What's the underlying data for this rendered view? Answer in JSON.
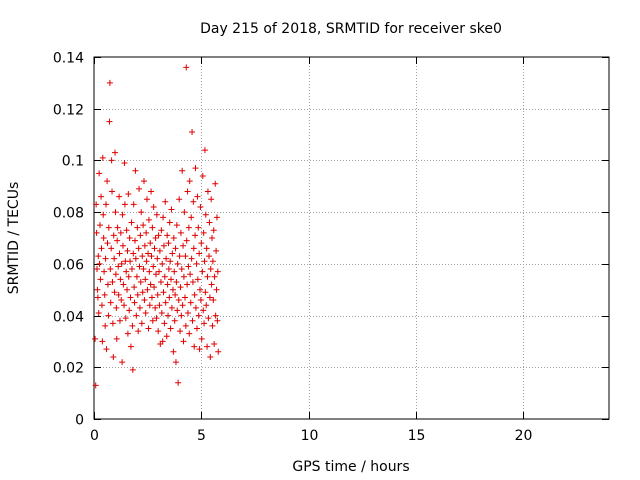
{
  "chart_data": {
    "type": "scatter",
    "title": "Day 215 of 2018, SRMTID for receiver ske0",
    "xlabel": "GPS time / hours",
    "ylabel": "SRMTID / TECUs",
    "xlim": [
      0,
      24
    ],
    "ylim": [
      0,
      0.14
    ],
    "xticks": [
      0,
      5,
      10,
      15,
      20
    ],
    "xtick_labels": [
      "0",
      "5",
      "10",
      "15",
      "20"
    ],
    "yticks": [
      0,
      0.02,
      0.04,
      0.06,
      0.08,
      0.1,
      0.12,
      0.14
    ],
    "ytick_labels": [
      "0",
      "0.02",
      "0.04",
      "0.06",
      "0.08",
      "0.1",
      "0.12",
      "0.14"
    ],
    "grid": true,
    "marker": "+",
    "series": [
      {
        "name": "SRMTID",
        "color": "#e00000",
        "points": [
          [
            0.05,
            0.031
          ],
          [
            0.08,
            0.013
          ],
          [
            0.1,
            0.083
          ],
          [
            0.12,
            0.072
          ],
          [
            0.14,
            0.058
          ],
          [
            0.16,
            0.05
          ],
          [
            0.18,
            0.047
          ],
          [
            0.2,
            0.063
          ],
          [
            0.22,
            0.041
          ],
          [
            0.24,
            0.095
          ],
          [
            0.26,
            0.06
          ],
          [
            0.28,
            0.075
          ],
          [
            0.3,
            0.054
          ],
          [
            0.33,
            0.086
          ],
          [
            0.35,
            0.066
          ],
          [
            0.37,
            0.044
          ],
          [
            0.39,
            0.03
          ],
          [
            0.41,
            0.101
          ],
          [
            0.43,
            0.079
          ],
          [
            0.45,
            0.07
          ],
          [
            0.47,
            0.057
          ],
          [
            0.5,
            0.048
          ],
          [
            0.52,
            0.036
          ],
          [
            0.54,
            0.062
          ],
          [
            0.56,
            0.083
          ],
          [
            0.58,
            0.027
          ],
          [
            0.61,
            0.092
          ],
          [
            0.63,
            0.068
          ],
          [
            0.65,
            0.052
          ],
          [
            0.67,
            0.04
          ],
          [
            0.69,
            0.074
          ],
          [
            0.72,
            0.115
          ],
          [
            0.74,
            0.13
          ],
          [
            0.76,
            0.058
          ],
          [
            0.78,
            0.045
          ],
          [
            0.8,
            0.066
          ],
          [
            0.82,
            0.1
          ],
          [
            0.84,
            0.088
          ],
          [
            0.86,
            0.053
          ],
          [
            0.88,
            0.037
          ],
          [
            0.9,
            0.024
          ],
          [
            0.92,
            0.071
          ],
          [
            0.94,
            0.062
          ],
          [
            0.96,
            0.049
          ],
          [
            0.98,
            0.103
          ],
          [
            1.0,
            0.08
          ],
          [
            1.02,
            0.056
          ],
          [
            1.04,
            0.043
          ],
          [
            1.06,
            0.031
          ],
          [
            1.08,
            0.069
          ],
          [
            1.1,
            0.074
          ],
          [
            1.13,
            0.059
          ],
          [
            1.15,
            0.048
          ],
          [
            1.17,
            0.086
          ],
          [
            1.19,
            0.064
          ],
          [
            1.21,
            0.038
          ],
          [
            1.23,
            0.054
          ],
          [
            1.25,
            0.072
          ],
          [
            1.27,
            0.046
          ],
          [
            1.29,
            0.06
          ],
          [
            1.31,
            0.022
          ],
          [
            1.33,
            0.079
          ],
          [
            1.35,
            0.067
          ],
          [
            1.37,
            0.052
          ],
          [
            1.4,
            0.044
          ],
          [
            1.42,
            0.099
          ],
          [
            1.44,
            0.083
          ],
          [
            1.46,
            0.061
          ],
          [
            1.48,
            0.039
          ],
          [
            1.5,
            0.057
          ],
          [
            1.52,
            0.073
          ],
          [
            1.54,
            0.05
          ],
          [
            1.56,
            0.065
          ],
          [
            1.58,
            0.033
          ],
          [
            1.6,
            0.087
          ],
          [
            1.62,
            0.055
          ],
          [
            1.64,
            0.042
          ],
          [
            1.66,
            0.07
          ],
          [
            1.68,
            0.061
          ],
          [
            1.7,
            0.047
          ],
          [
            1.72,
            0.028
          ],
          [
            1.75,
            0.076
          ],
          [
            1.77,
            0.058
          ],
          [
            1.79,
            0.036
          ],
          [
            1.81,
            0.019
          ],
          [
            1.83,
            0.064
          ],
          [
            1.85,
            0.083
          ],
          [
            1.87,
            0.051
          ],
          [
            1.89,
            0.045
          ],
          [
            1.91,
            0.069
          ],
          [
            1.93,
            0.096
          ],
          [
            1.95,
            0.062
          ],
          [
            1.97,
            0.04
          ],
          [
            2.0,
            0.055
          ],
          [
            2.02,
            0.074
          ],
          [
            2.04,
            0.048
          ],
          [
            2.06,
            0.034
          ],
          [
            2.08,
            0.066
          ],
          [
            2.1,
            0.089
          ],
          [
            2.12,
            0.059
          ],
          [
            2.14,
            0.043
          ],
          [
            2.16,
            0.071
          ],
          [
            2.18,
            0.053
          ],
          [
            2.2,
            0.08
          ],
          [
            2.23,
            0.037
          ],
          [
            2.25,
            0.063
          ],
          [
            2.27,
            0.049
          ],
          [
            2.29,
            0.075
          ],
          [
            2.31,
            0.058
          ],
          [
            2.33,
            0.092
          ],
          [
            2.35,
            0.046
          ],
          [
            2.37,
            0.067
          ],
          [
            2.39,
            0.054
          ],
          [
            2.41,
            0.041
          ],
          [
            2.43,
            0.072
          ],
          [
            2.45,
            0.061
          ],
          [
            2.47,
            0.085
          ],
          [
            2.49,
            0.05
          ],
          [
            2.52,
            0.064
          ],
          [
            2.54,
            0.035
          ],
          [
            2.56,
            0.077
          ],
          [
            2.58,
            0.057
          ],
          [
            2.6,
            0.044
          ],
          [
            2.62,
            0.068
          ],
          [
            2.64,
            0.052
          ],
          [
            2.66,
            0.088
          ],
          [
            2.68,
            0.063
          ],
          [
            2.7,
            0.047
          ],
          [
            2.72,
            0.074
          ],
          [
            2.74,
            0.038
          ],
          [
            2.76,
            0.059
          ],
          [
            2.78,
            0.082
          ],
          [
            2.8,
            0.051
          ],
          [
            2.82,
            0.066
          ],
          [
            2.85,
            0.043
          ],
          [
            2.87,
            0.07
          ],
          [
            2.89,
            0.056
          ],
          [
            2.91,
            0.039
          ],
          [
            2.93,
            0.079
          ],
          [
            2.95,
            0.062
          ],
          [
            2.97,
            0.048
          ],
          [
            2.99,
            0.034
          ],
          [
            3.01,
            0.071
          ],
          [
            3.03,
            0.057
          ],
          [
            3.05,
            0.044
          ],
          [
            3.07,
            0.065
          ],
          [
            3.09,
            0.029
          ],
          [
            3.12,
            0.053
          ],
          [
            3.14,
            0.073
          ],
          [
            3.16,
            0.041
          ],
          [
            3.18,
            0.06
          ],
          [
            3.2,
            0.03
          ],
          [
            3.22,
            0.078
          ],
          [
            3.24,
            0.049
          ],
          [
            3.26,
            0.067
          ],
          [
            3.28,
            0.037
          ],
          [
            3.3,
            0.055
          ],
          [
            3.32,
            0.084
          ],
          [
            3.34,
            0.045
          ],
          [
            3.36,
            0.062
          ],
          [
            3.39,
            0.032
          ],
          [
            3.41,
            0.071
          ],
          [
            3.43,
            0.052
          ],
          [
            3.45,
            0.04
          ],
          [
            3.47,
            0.068
          ],
          [
            3.49,
            0.058
          ],
          [
            3.51,
            0.047
          ],
          [
            3.53,
            0.076
          ],
          [
            3.55,
            0.061
          ],
          [
            3.57,
            0.035
          ],
          [
            3.59,
            0.054
          ],
          [
            3.61,
            0.081
          ],
          [
            3.63,
            0.043
          ],
          [
            3.65,
            0.064
          ],
          [
            3.68,
            0.05
          ],
          [
            3.7,
            0.026
          ],
          [
            3.72,
            0.07
          ],
          [
            3.74,
            0.057
          ],
          [
            3.76,
            0.038
          ],
          [
            3.78,
            0.048
          ],
          [
            3.8,
            0.066
          ],
          [
            3.82,
            0.022
          ],
          [
            3.84,
            0.053
          ],
          [
            3.86,
            0.075
          ],
          [
            3.88,
            0.042
          ],
          [
            3.9,
            0.06
          ],
          [
            3.92,
            0.014
          ],
          [
            3.95,
            0.046
          ],
          [
            3.97,
            0.085
          ],
          [
            3.99,
            0.063
          ],
          [
            4.01,
            0.034
          ],
          [
            4.03,
            0.051
          ],
          [
            4.05,
            0.072
          ],
          [
            4.07,
            0.04
          ],
          [
            4.09,
            0.058
          ],
          [
            4.11,
            0.096
          ],
          [
            4.13,
            0.044
          ],
          [
            4.15,
            0.067
          ],
          [
            4.17,
            0.03
          ],
          [
            4.19,
            0.055
          ],
          [
            4.21,
            0.08
          ],
          [
            4.24,
            0.047
          ],
          [
            4.26,
            0.063
          ],
          [
            4.28,
            0.036
          ],
          [
            4.3,
            0.136
          ],
          [
            4.32,
            0.069
          ],
          [
            4.34,
            0.052
          ],
          [
            4.36,
            0.088
          ],
          [
            4.38,
            0.041
          ],
          [
            4.4,
            0.059
          ],
          [
            4.42,
            0.074
          ],
          [
            4.44,
            0.033
          ],
          [
            4.46,
            0.092
          ],
          [
            4.48,
            0.056
          ],
          [
            4.51,
            0.045
          ],
          [
            4.53,
            0.078
          ],
          [
            4.55,
            0.062
          ],
          [
            4.57,
            0.111
          ],
          [
            4.59,
            0.038
          ],
          [
            4.61,
            0.053
          ],
          [
            4.63,
            0.084
          ],
          [
            4.65,
            0.066
          ],
          [
            4.67,
            0.028
          ],
          [
            4.69,
            0.048
          ],
          [
            4.71,
            0.071
          ],
          [
            4.73,
            0.097
          ],
          [
            4.75,
            0.043
          ],
          [
            4.78,
            0.06
          ],
          [
            4.8,
            0.035
          ],
          [
            4.82,
            0.086
          ],
          [
            4.84,
            0.054
          ],
          [
            4.86,
            0.074
          ],
          [
            4.88,
            0.04
          ],
          [
            4.9,
            0.064
          ],
          [
            4.92,
            0.027
          ],
          [
            4.94,
            0.05
          ],
          [
            4.96,
            0.082
          ],
          [
            4.98,
            0.046
          ],
          [
            5.0,
            0.068
          ],
          [
            5.02,
            0.031
          ],
          [
            5.05,
            0.057
          ],
          [
            5.07,
            0.094
          ],
          [
            5.09,
            0.042
          ],
          [
            5.11,
            0.072
          ],
          [
            5.13,
            0.037
          ],
          [
            5.15,
            0.061
          ],
          [
            5.17,
            0.104
          ],
          [
            5.19,
            0.049
          ],
          [
            5.21,
            0.079
          ],
          [
            5.23,
            0.044
          ],
          [
            5.25,
            0.066
          ],
          [
            5.27,
            0.028
          ],
          [
            5.29,
            0.055
          ],
          [
            5.31,
            0.088
          ],
          [
            5.33,
            0.039
          ],
          [
            5.36,
            0.063
          ],
          [
            5.38,
            0.076
          ],
          [
            5.4,
            0.047
          ],
          [
            5.42,
            0.024
          ],
          [
            5.44,
            0.058
          ],
          [
            5.46,
            0.085
          ],
          [
            5.48,
            0.052
          ],
          [
            5.5,
            0.07
          ],
          [
            5.52,
            0.036
          ],
          [
            5.54,
            0.061
          ],
          [
            5.56,
            0.046
          ],
          [
            5.58,
            0.073
          ],
          [
            5.6,
            0.029
          ],
          [
            5.62,
            0.055
          ],
          [
            5.65,
            0.091
          ],
          [
            5.67,
            0.04
          ],
          [
            5.69,
            0.065
          ],
          [
            5.71,
            0.05
          ],
          [
            5.73,
            0.078
          ],
          [
            5.75,
            0.038
          ],
          [
            5.77,
            0.057
          ],
          [
            5.79,
            0.026
          ]
        ]
      }
    ]
  }
}
